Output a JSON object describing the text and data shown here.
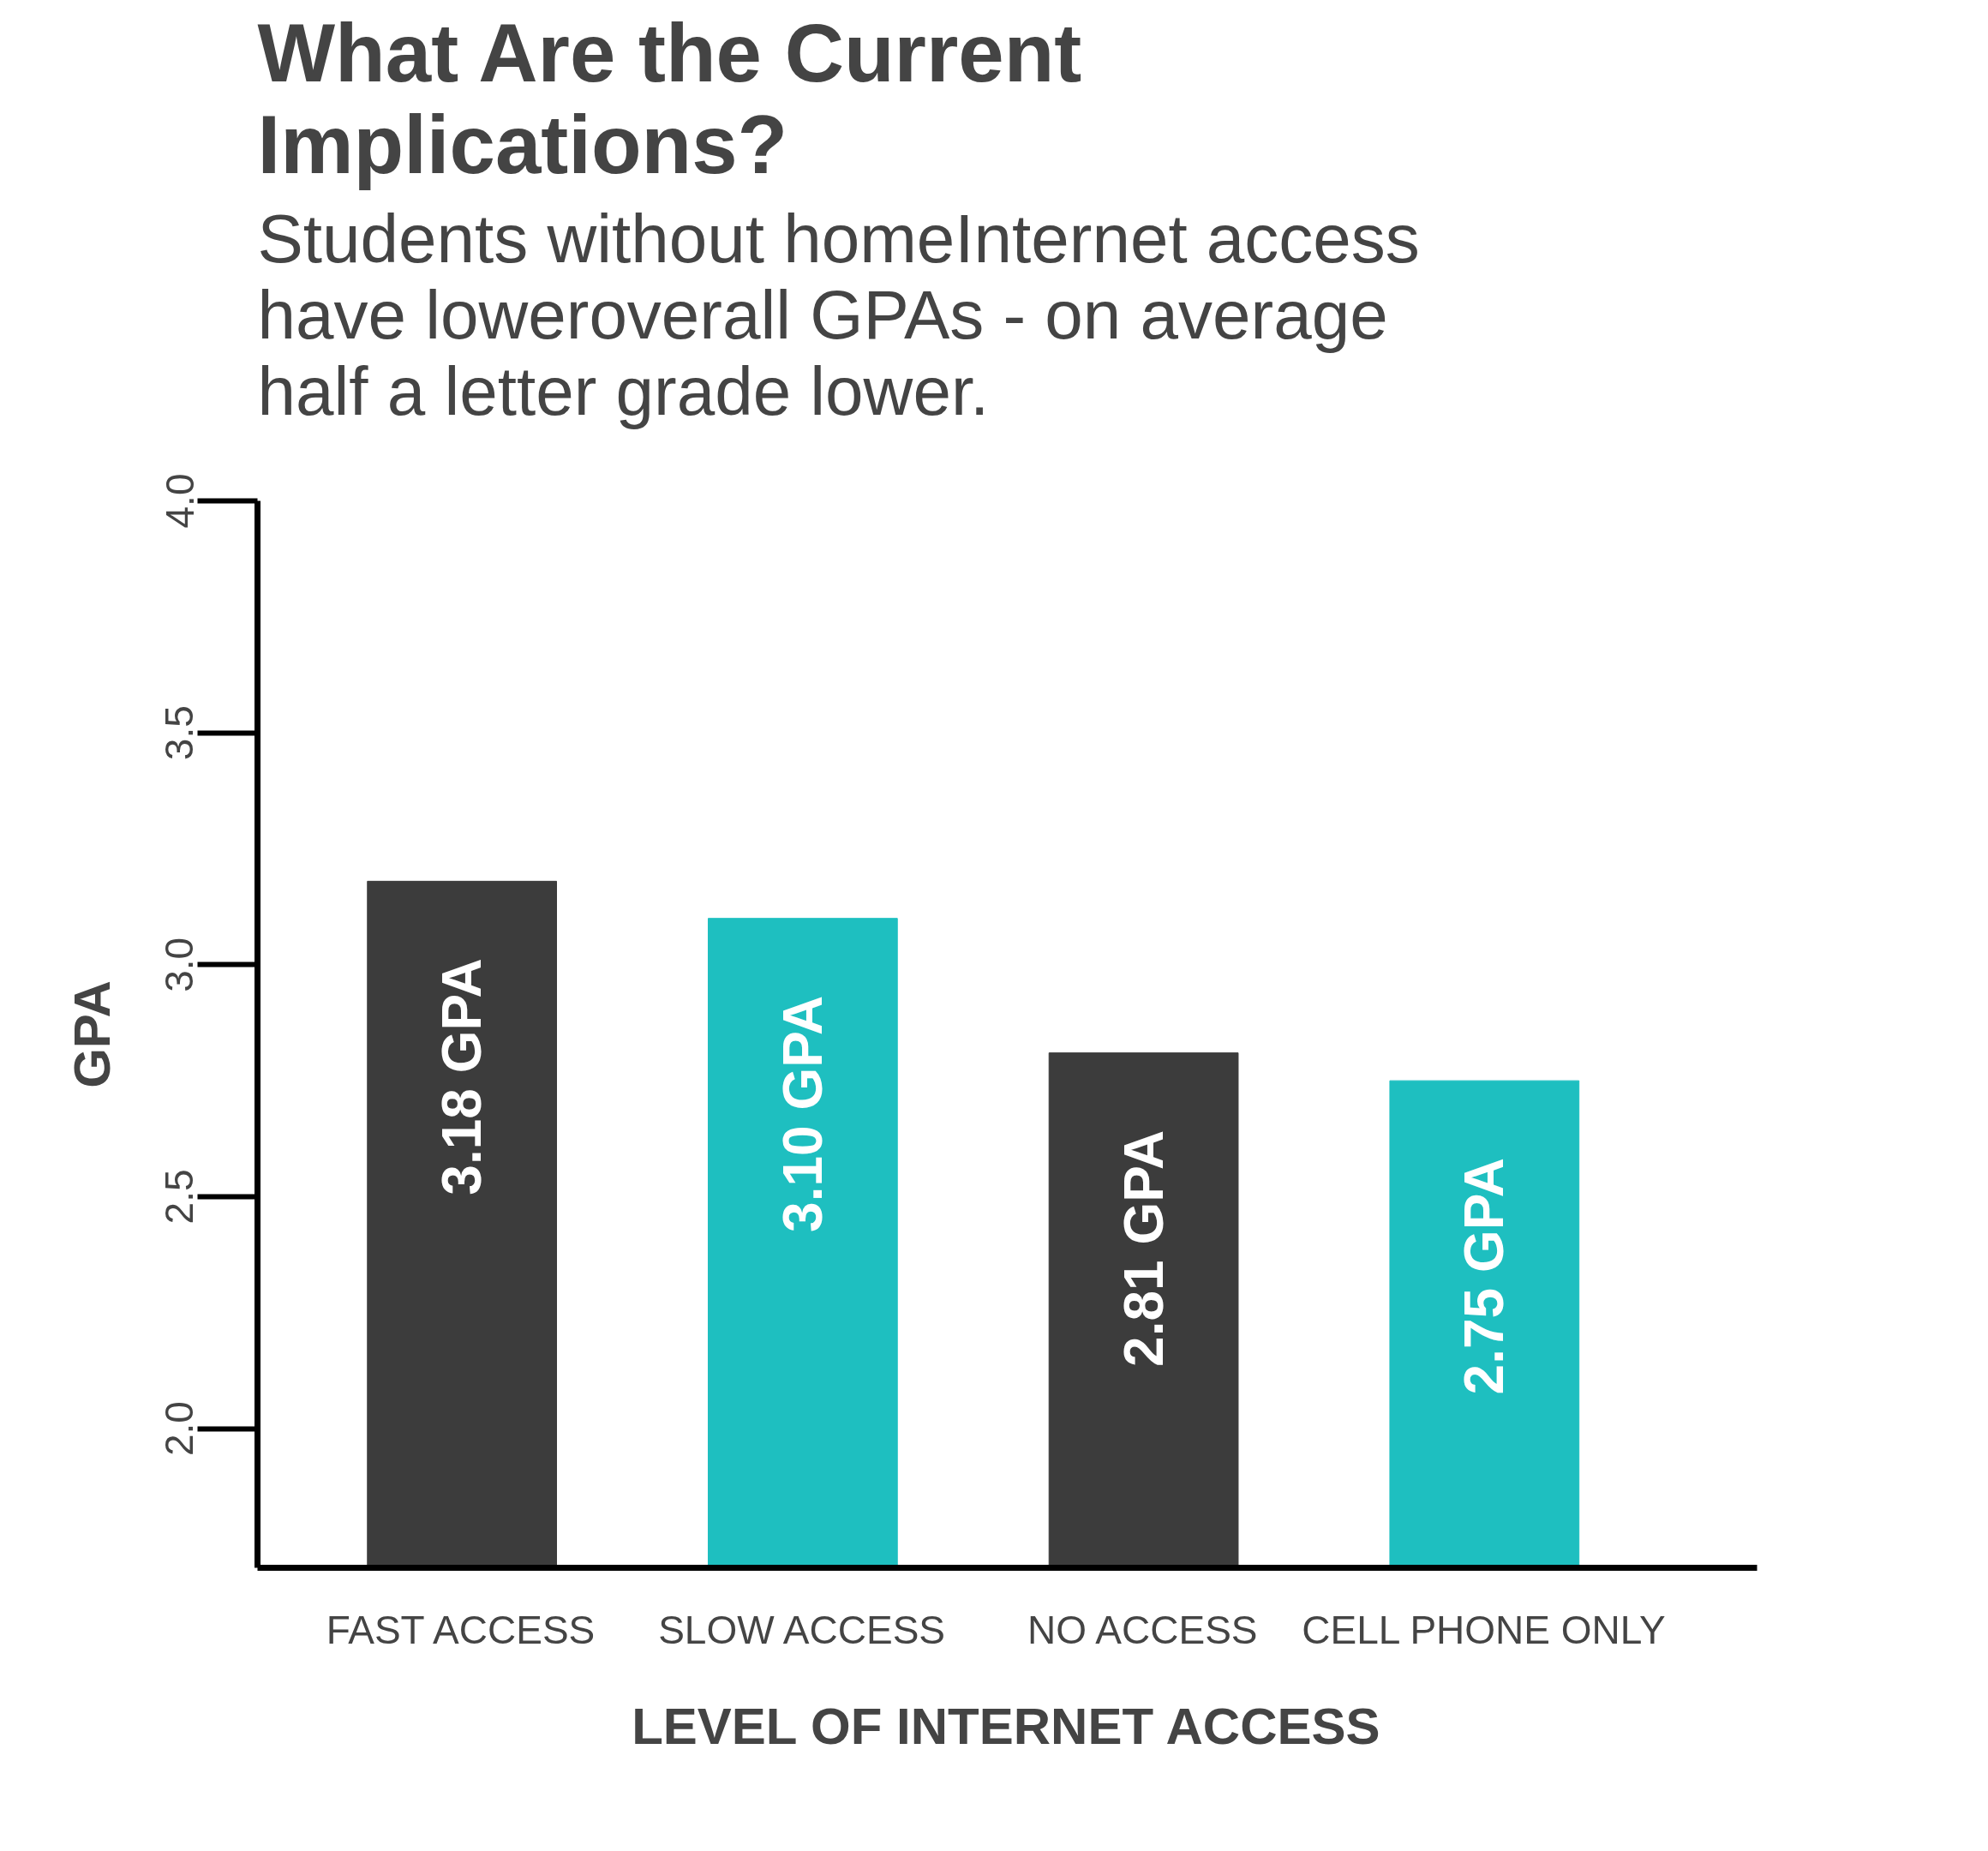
{
  "chart_data": {
    "type": "bar",
    "title": "What Are the Current Implications?",
    "subtitle": "Students without homeInternet access have loweroverall GPAs - on average half a letter grade lower.",
    "xlabel": "LEVEL OF INTERNET ACCESS",
    "ylabel": "GPA",
    "categories": [
      "FAST ACCESS",
      "SLOW ACCESS",
      "NO ACCESS",
      "CELL PHONE ONLY"
    ],
    "values": [
      3.18,
      3.1,
      2.81,
      2.75
    ],
    "colors": [
      "#3c3c3c",
      "#1ebfc0",
      "#3c3c3c",
      "#1ebfc0"
    ],
    "value_labels": [
      "3.18 GPA",
      "3.10 GPA",
      "2.81 GPA",
      "2.75 GPA"
    ],
    "ylim": [
      1.7,
      4.0
    ],
    "yticks": [
      {
        "value": 2.0,
        "label": "2.0"
      },
      {
        "value": 2.5,
        "label": "2.5"
      },
      {
        "value": 3.0,
        "label": "3.0"
      },
      {
        "value": 3.5,
        "label": "3.5"
      },
      {
        "value": 4.0,
        "label": "4.0"
      }
    ],
    "grid": false
  }
}
